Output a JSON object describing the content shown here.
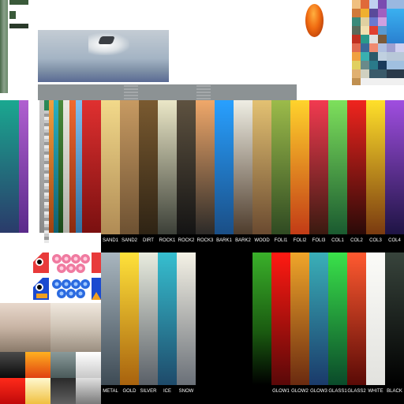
{
  "palette_top": {
    "names": [
      "SAND1",
      "SAND2",
      "DIRT",
      "ROCK1",
      "ROCK2",
      "ROCK3",
      "BARK1",
      "BARK2",
      "WOOD",
      "FOLI1",
      "FOLI2",
      "FOLI3",
      "COL1",
      "COL2",
      "COL3",
      "COL4"
    ],
    "colors": [
      [
        "#f2d98a",
        "#b08b55"
      ],
      [
        "#c79a62",
        "#6d5132"
      ],
      [
        "#7a5a30",
        "#2e2314"
      ],
      [
        "#ebe7c7",
        "#3c4038"
      ],
      [
        "#5e5240",
        "#141414"
      ],
      [
        "#f0a86a",
        "#2c2a28"
      ],
      [
        "#28a0ff",
        "#1a4e86"
      ],
      [
        "#efeee4",
        "#4e3c2c"
      ],
      [
        "#e3c172",
        "#6a4a30"
      ],
      [
        "#9cbb4a",
        "#2f4a22"
      ],
      [
        "#ffd32c",
        "#c23b16"
      ],
      [
        "#f23a50",
        "#3a1a10"
      ],
      [
        "#7ee05c",
        "#1a5a30"
      ],
      [
        "#f0241e",
        "#2a0a08"
      ],
      [
        "#ffe02a",
        "#7a3a10"
      ],
      [
        "#a04ee0",
        "#1e1444"
      ]
    ]
  },
  "palette_bottom_left": {
    "names": [
      "METAL",
      "GOLD",
      "SILVER",
      "ICE",
      "SNOW"
    ],
    "colors": [
      [
        "#a9b6bf",
        "#3e4b55"
      ],
      [
        "#ffe23a",
        "#a8620e"
      ],
      [
        "#e9ecdf",
        "#5a6068"
      ],
      [
        "#36bfd0",
        "#1e4a6a"
      ],
      [
        "#f5f2e6",
        "#6a7078"
      ]
    ]
  },
  "palette_bottom_right": {
    "names": [
      "GLOW1",
      "GLOW2",
      "GLOW3",
      "GLASS1",
      "GLASS2",
      "WHITE",
      "BLACK"
    ],
    "colors": [
      [
        "#ff1a12",
        "#5a0808"
      ],
      [
        "#f0a62a",
        "#6a2a10"
      ],
      [
        "#3ab0b8",
        "#1a3a6a"
      ],
      [
        "#3ae24a",
        "#0a4a2a"
      ],
      [
        "#ff5a30",
        "#5a0a06"
      ],
      [
        "#fbfbf8",
        "#e2e2de"
      ],
      [
        "#38443c",
        "#000000"
      ]
    ]
  },
  "left_strips": {
    "colors": [
      [
        "#1aa890",
        "#2a3a6a"
      ],
      [
        "#b060d0",
        "#5a2a8a"
      ],
      [
        "#ffffff",
        "#ffffff"
      ],
      [
        "#c8c8c8",
        "#888888"
      ],
      [
        "#2a8a5a",
        "#1a4a2a"
      ],
      [
        "#f0a040",
        "#a04010"
      ],
      [
        "#2ab0c0",
        "#106070"
      ],
      [
        "#4a8a3a",
        "#1a4a1a"
      ],
      [
        "#e8e8e0",
        "#b0b0a8"
      ],
      [
        "#f06a30",
        "#8a2a10"
      ],
      [
        "#80c0f0",
        "#3070a0"
      ],
      [
        "#e03030",
        "#7a1010"
      ]
    ]
  }
}
